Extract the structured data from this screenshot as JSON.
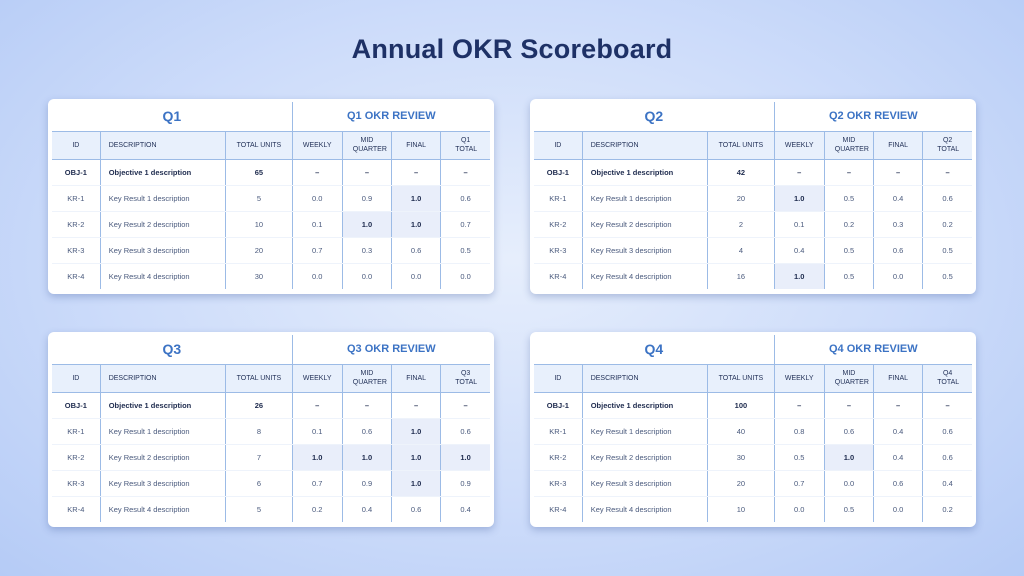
{
  "title": "Annual OKR Scoreboard",
  "quarters": [
    {
      "label": "Q1",
      "review": "Q1 OKR REVIEW",
      "total_header": "Q1 TOTAL",
      "rows": [
        {
          "id": "OBJ-1",
          "desc": "Objective 1 description",
          "units": "65",
          "weekly": "–",
          "mid": "–",
          "final": "–",
          "total": "–"
        },
        {
          "id": "KR-1",
          "desc": "Key Result 1 description",
          "units": "5",
          "weekly": "0.0",
          "mid": "0.9",
          "final": "1.0",
          "total": "0.6"
        },
        {
          "id": "KR-2",
          "desc": "Key Result 2 description",
          "units": "10",
          "weekly": "0.1",
          "mid": "1.0",
          "final": "1.0",
          "total": "0.7"
        },
        {
          "id": "KR-3",
          "desc": "Key Result 3 description",
          "units": "20",
          "weekly": "0.7",
          "mid": "0.3",
          "final": "0.6",
          "total": "0.5"
        },
        {
          "id": "KR-4",
          "desc": "Key Result 4 description",
          "units": "30",
          "weekly": "0.0",
          "mid": "0.0",
          "final": "0.0",
          "total": "0.0"
        }
      ]
    },
    {
      "label": "Q2",
      "review": "Q2 OKR REVIEW",
      "total_header": "Q2 TOTAL",
      "rows": [
        {
          "id": "OBJ-1",
          "desc": "Objective 1 description",
          "units": "42",
          "weekly": "–",
          "mid": "–",
          "final": "–",
          "total": "–"
        },
        {
          "id": "KR-1",
          "desc": "Key Result 1 description",
          "units": "20",
          "weekly": "1.0",
          "mid": "0.5",
          "final": "0.4",
          "total": "0.6"
        },
        {
          "id": "KR-2",
          "desc": "Key Result 2 description",
          "units": "2",
          "weekly": "0.1",
          "mid": "0.2",
          "final": "0.3",
          "total": "0.2"
        },
        {
          "id": "KR-3",
          "desc": "Key Result 3 description",
          "units": "4",
          "weekly": "0.4",
          "mid": "0.5",
          "final": "0.6",
          "total": "0.5"
        },
        {
          "id": "KR-4",
          "desc": "Key Result 4 description",
          "units": "16",
          "weekly": "1.0",
          "mid": "0.5",
          "final": "0.0",
          "total": "0.5"
        }
      ]
    },
    {
      "label": "Q3",
      "review": "Q3 OKR REVIEW",
      "total_header": "Q3 TOTAL",
      "rows": [
        {
          "id": "OBJ-1",
          "desc": "Objective 1 description",
          "units": "26",
          "weekly": "–",
          "mid": "–",
          "final": "–",
          "total": "–"
        },
        {
          "id": "KR-1",
          "desc": "Key Result 1 description",
          "units": "8",
          "weekly": "0.1",
          "mid": "0.6",
          "final": "1.0",
          "total": "0.6"
        },
        {
          "id": "KR-2",
          "desc": "Key Result 2 description",
          "units": "7",
          "weekly": "1.0",
          "mid": "1.0",
          "final": "1.0",
          "total": "1.0"
        },
        {
          "id": "KR-3",
          "desc": "Key Result 3 description",
          "units": "6",
          "weekly": "0.7",
          "mid": "0.9",
          "final": "1.0",
          "total": "0.9"
        },
        {
          "id": "KR-4",
          "desc": "Key Result 4 description",
          "units": "5",
          "weekly": "0.2",
          "mid": "0.4",
          "final": "0.6",
          "total": "0.4"
        }
      ]
    },
    {
      "label": "Q4",
      "review": "Q4 OKR REVIEW",
      "total_header": "Q4 TOTAL",
      "rows": [
        {
          "id": "OBJ-1",
          "desc": "Objective 1 description",
          "units": "100",
          "weekly": "–",
          "mid": "–",
          "final": "–",
          "total": "–"
        },
        {
          "id": "KR-1",
          "desc": "Key Result 1 description",
          "units": "40",
          "weekly": "0.8",
          "mid": "0.6",
          "final": "0.4",
          "total": "0.6"
        },
        {
          "id": "KR-2",
          "desc": "Key Result 2 description",
          "units": "30",
          "weekly": "0.5",
          "mid": "1.0",
          "final": "0.4",
          "total": "0.6"
        },
        {
          "id": "KR-3",
          "desc": "Key Result 3 description",
          "units": "20",
          "weekly": "0.7",
          "mid": "0.0",
          "final": "0.6",
          "total": "0.4"
        },
        {
          "id": "KR-4",
          "desc": "Key Result 4 description",
          "units": "10",
          "weekly": "0.0",
          "mid": "0.5",
          "final": "0.0",
          "total": "0.2"
        }
      ]
    }
  ],
  "columns": {
    "id": "ID",
    "description": "DESCRIPTION",
    "total_units": "TOTAL UNITS",
    "weekly": "WEEKLY",
    "mid_quarter": "MID QUARTER",
    "final": "FINAL"
  },
  "colors": {
    "title": "#1e3166",
    "accent": "#3c73c4",
    "highlight": "#e9eefa"
  }
}
